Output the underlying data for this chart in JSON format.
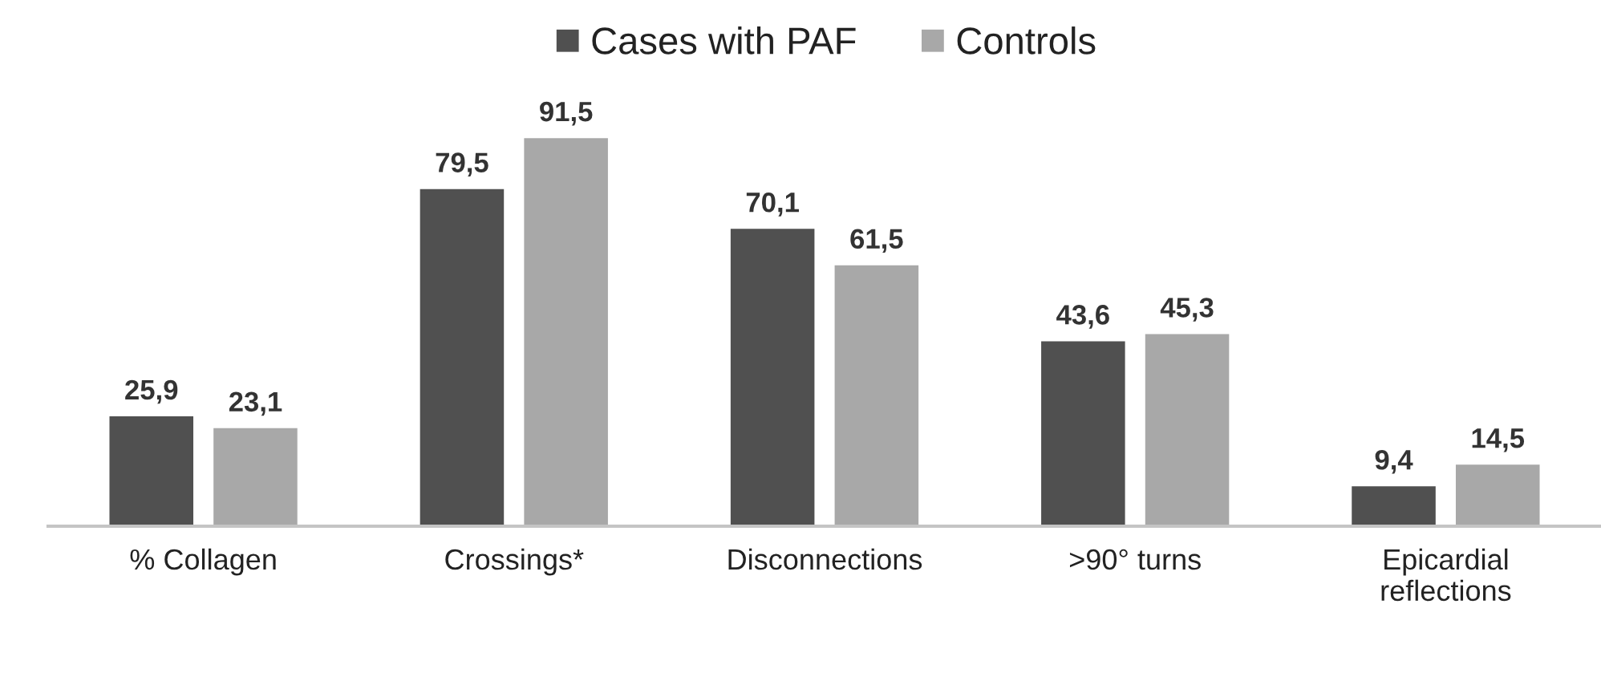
{
  "chart_data": {
    "type": "bar",
    "categories": [
      "% Collagen",
      "Crossings*",
      "Disconnections",
      ">90° turns",
      "Epicardial\nreflections"
    ],
    "series": [
      {
        "name": "Cases with PAF",
        "color": "#505050",
        "values": [
          25.9,
          79.5,
          70.1,
          43.6,
          9.4
        ],
        "value_labels": [
          "25,9",
          "79,5",
          "70,1",
          "43,6",
          "9,4"
        ]
      },
      {
        "name": "Controls",
        "color": "#a8a8a8",
        "values": [
          23.1,
          91.5,
          61.5,
          45.3,
          14.5
        ],
        "value_labels": [
          "23,1",
          "91,5",
          "61,5",
          "45,3",
          "14,5"
        ]
      }
    ],
    "legend": "top",
    "tick_labels": "x"
  }
}
